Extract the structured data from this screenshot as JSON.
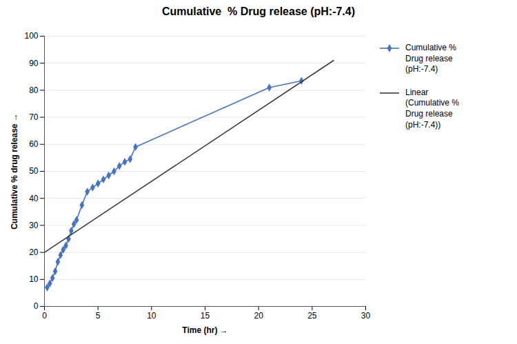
{
  "chart_data": {
    "type": "line",
    "title": "Cumulative  % Drug release (pH:-7.4)",
    "xlabel": "Time (hr)",
    "ylabel": "Cumulative % drug release",
    "xlim": [
      0,
      30
    ],
    "ylim": [
      0,
      100
    ],
    "xticks": [
      0,
      5,
      10,
      15,
      20,
      25,
      30
    ],
    "yticks": [
      0,
      10,
      20,
      30,
      40,
      50,
      60,
      70,
      80,
      90,
      100
    ],
    "grid": "y",
    "legend": "right",
    "series": [
      {
        "name": "Cumulative %\nDrug release\n(pH:-7.4)",
        "color": "#4472C4",
        "marker": "diamond",
        "x": [
          0.25,
          0.5,
          0.75,
          1.0,
          1.25,
          1.5,
          1.75,
          2.0,
          2.25,
          2.5,
          2.75,
          3.0,
          3.5,
          4.0,
          4.5,
          5.0,
          5.5,
          6.0,
          6.5,
          7.0,
          7.5,
          8.0,
          8.5,
          21.0,
          24.0
        ],
        "values": [
          7.0,
          8.5,
          10.5,
          13.0,
          16.5,
          19.0,
          21.0,
          22.5,
          25.0,
          28.0,
          30.5,
          32.0,
          37.5,
          42.5,
          44.0,
          45.5,
          47.0,
          48.5,
          50.0,
          52.0,
          53.5,
          54.5,
          59.0,
          81.0,
          83.5
        ]
      },
      {
        "name": "Linear\n(Cumulative %\nDrug release\n(pH:-7.4))",
        "color": "#3a3a3a",
        "x": [
          0,
          27
        ],
        "values": [
          20.0,
          91.0
        ]
      }
    ]
  }
}
